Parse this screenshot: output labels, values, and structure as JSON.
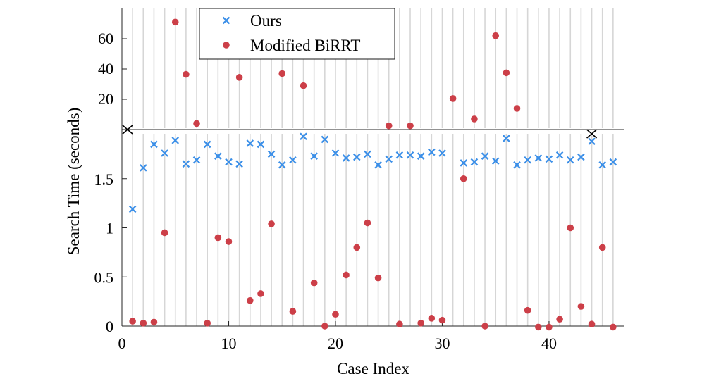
{
  "chart_data": {
    "type": "scatter",
    "title": "",
    "xlabel": "Case Index",
    "ylabel": "Search Time (seconds)",
    "xlim": [
      0,
      47
    ],
    "x_ticks": [
      0,
      10,
      20,
      30,
      40
    ],
    "broken_axis": true,
    "upper_panel": {
      "ylim": [
        0,
        80
      ],
      "yticks": [
        20,
        40,
        60
      ]
    },
    "lower_panel": {
      "ylim": [
        0,
        2
      ],
      "yticks": [
        0,
        0.5,
        1,
        1.5
      ],
      "ytick_labels": [
        "0",
        "0.5",
        "1",
        "1.5"
      ]
    },
    "grid": "vertical lines at each case index",
    "legend": {
      "position": "top-center"
    },
    "colors": {
      "ours": "#3b8fe8",
      "birrt": "#cc3f48",
      "grid": "#d6d6d6"
    },
    "series": [
      {
        "name": "Ours",
        "marker": "x",
        "x": [
          1,
          2,
          3,
          4,
          5,
          6,
          7,
          8,
          9,
          10,
          11,
          12,
          13,
          14,
          15,
          16,
          17,
          18,
          19,
          20,
          21,
          22,
          23,
          24,
          25,
          26,
          27,
          28,
          29,
          30,
          32,
          33,
          34,
          35,
          36,
          37,
          38,
          39,
          40,
          41,
          42,
          43,
          44,
          45,
          46
        ],
        "y": [
          1.19,
          1.61,
          1.85,
          1.76,
          1.89,
          1.65,
          1.69,
          1.85,
          1.73,
          1.67,
          1.65,
          1.86,
          1.85,
          1.75,
          1.64,
          1.69,
          1.93,
          1.73,
          1.9,
          1.76,
          1.71,
          1.72,
          1.75,
          1.64,
          1.7,
          1.74,
          1.74,
          1.73,
          1.77,
          1.76,
          1.66,
          1.67,
          1.73,
          1.68,
          1.91,
          1.64,
          1.69,
          1.71,
          1.7,
          1.74,
          1.69,
          1.72,
          1.88,
          1.64,
          1.67
        ]
      },
      {
        "name": "Modified BiRRT",
        "marker": "o",
        "x": [
          1,
          2,
          3,
          4,
          5,
          6,
          7,
          8,
          9,
          10,
          11,
          12,
          13,
          14,
          15,
          16,
          17,
          18,
          19,
          20,
          21,
          22,
          23,
          24,
          25,
          26,
          27,
          28,
          29,
          30,
          31,
          32,
          33,
          34,
          35,
          36,
          37,
          38,
          39,
          40,
          41,
          42,
          43,
          44,
          45,
          46
        ],
        "y": [
          0.05,
          0.03,
          0.04,
          0.95,
          71.0,
          36.5,
          4.0,
          0.03,
          0.9,
          0.86,
          34.5,
          0.26,
          0.33,
          1.04,
          37.0,
          0.15,
          29.0,
          0.44,
          0.0,
          0.12,
          0.52,
          0.8,
          1.05,
          0.49,
          2.5,
          0.02,
          2.5,
          0.03,
          0.08,
          0.06,
          20.5,
          1.5,
          7.0,
          0.0,
          62.0,
          37.5,
          14.0,
          0.16,
          -0.01,
          -0.01,
          0.07,
          1.0,
          0.2,
          0.02,
          0.8,
          -0.01
        ]
      }
    ]
  }
}
